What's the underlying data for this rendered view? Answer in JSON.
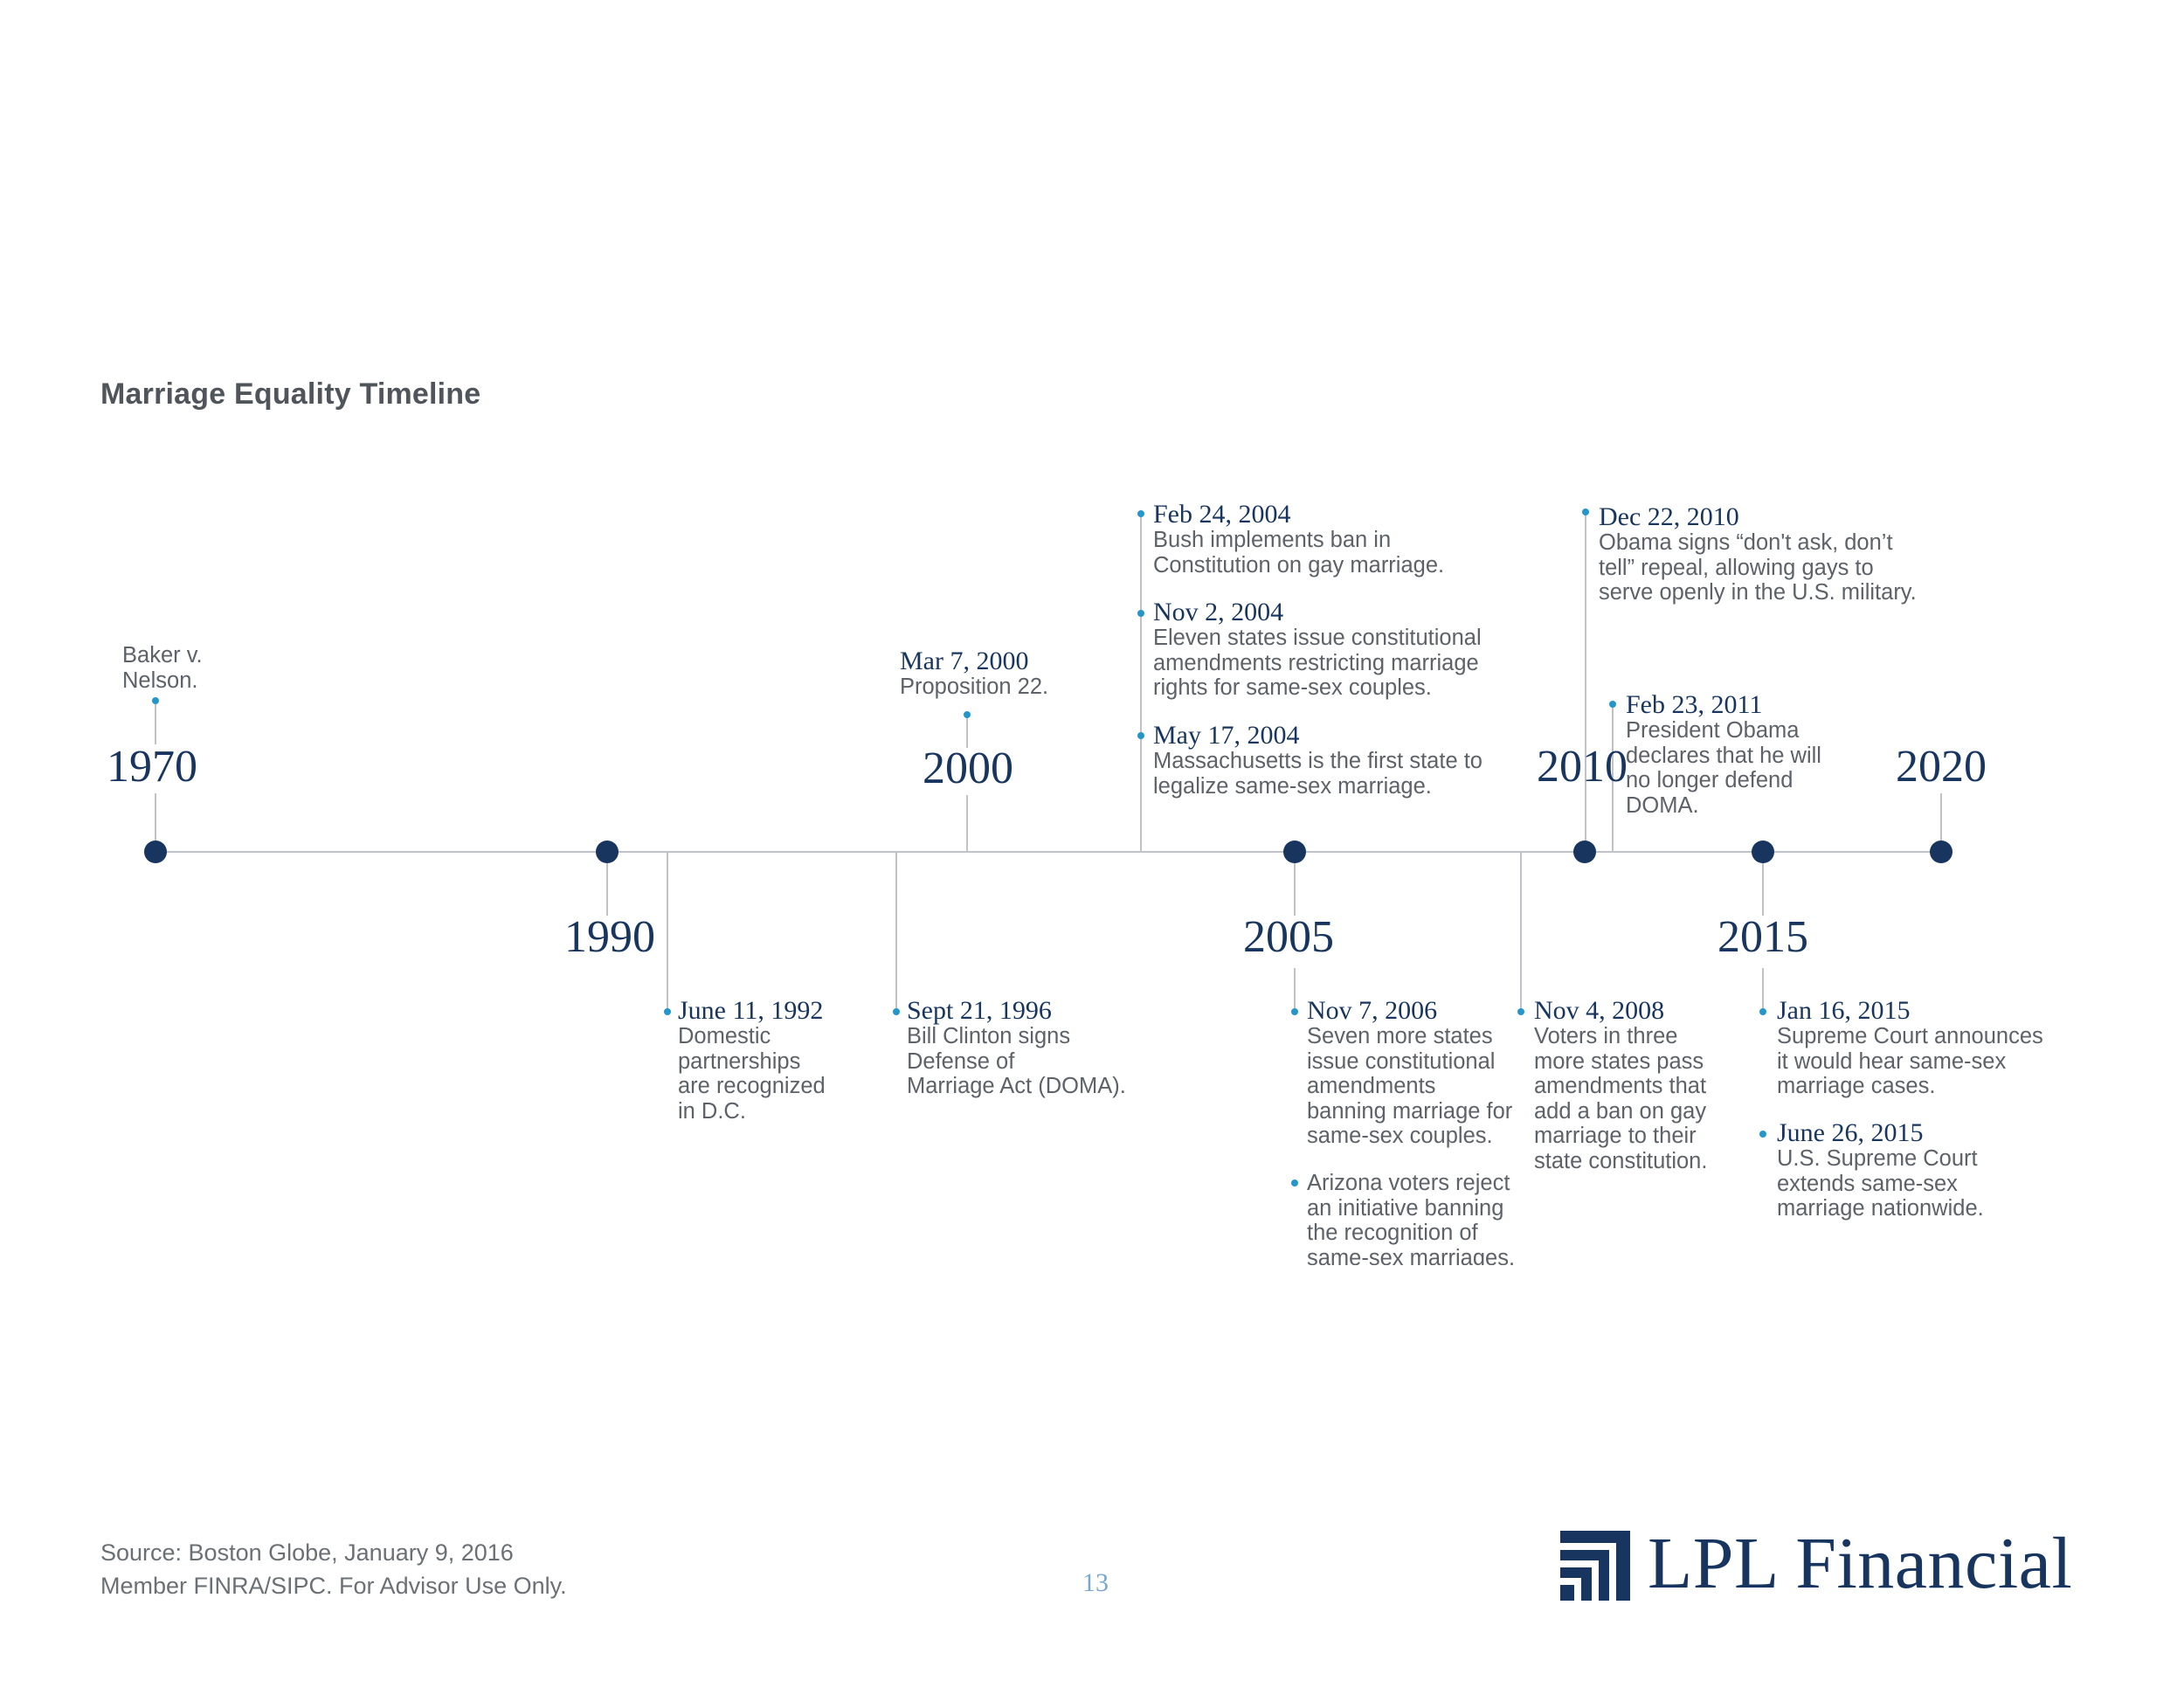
{
  "page": {
    "title": "Marriage Equality Timeline",
    "source": "Source: Boston Globe, January 9, 2016",
    "disclaimer": "Member FINRA/SIPC. For Advisor Use Only.",
    "page_number": "13",
    "logo_text": "LPL Financial"
  },
  "colors": {
    "navy": "#17355e",
    "bullet_blue": "#2596c9",
    "axis_gray": "#bfc3c7",
    "body_text": "#5d6268"
  },
  "years": [
    "1970",
    "1990",
    "2000",
    "2005",
    "2010",
    "2015",
    "2020"
  ],
  "events": {
    "baker": {
      "date": "",
      "text": "Baker v.\nNelson."
    },
    "jun1992": {
      "date": "June 11, 1992",
      "text": "Domestic\npartnerships\nare recognized\nin D.C."
    },
    "sep1996": {
      "date": "Sept 21, 1996",
      "text": "Bill Clinton signs\nDefense of\nMarriage Act (DOMA)."
    },
    "mar2000": {
      "date": "Mar 7, 2000",
      "text": "Proposition 22."
    },
    "feb2004": {
      "date": "Feb 24, 2004",
      "text": "Bush implements ban in\nConstitution on gay marriage."
    },
    "nov2004": {
      "date": "Nov 2, 2004",
      "text": "Eleven states issue constitutional\namendments restricting marriage\nrights for same-sex couples."
    },
    "may2004": {
      "date": "May 17, 2004",
      "text": "Massachusetts is the first state to\nlegalize same-sex marriage."
    },
    "nov2006": {
      "date": "Nov 7, 2006",
      "text": "Seven more states\nissue constitutional\namendments\nbanning marriage for\nsame-sex couples."
    },
    "arizona": {
      "date": "",
      "text": "Arizona voters reject\nan initiative banning\nthe recognition of\nsame-sex marriages."
    },
    "nov2008": {
      "date": "Nov 4, 2008",
      "text": "Voters in three\nmore states pass\namendments that\nadd a ban on gay\nmarriage to their\nstate constitution."
    },
    "dec2010": {
      "date": "Dec 22, 2010",
      "text": "Obama signs “don't ask, don’t\ntell” repeal, allowing gays to\nserve openly in the U.S. military."
    },
    "feb2011": {
      "date": "Feb 23, 2011",
      "text": "President Obama\ndeclares that he will\nno longer defend\nDOMA."
    },
    "jan2015": {
      "date": "Jan 16, 2015",
      "text": "Supreme Court announces\nit would hear same-sex\nmarriage cases."
    },
    "jun2015": {
      "date": "June 26, 2015",
      "text": "U.S. Supreme Court\nextends same-sex\nmarriage nationwide."
    }
  }
}
